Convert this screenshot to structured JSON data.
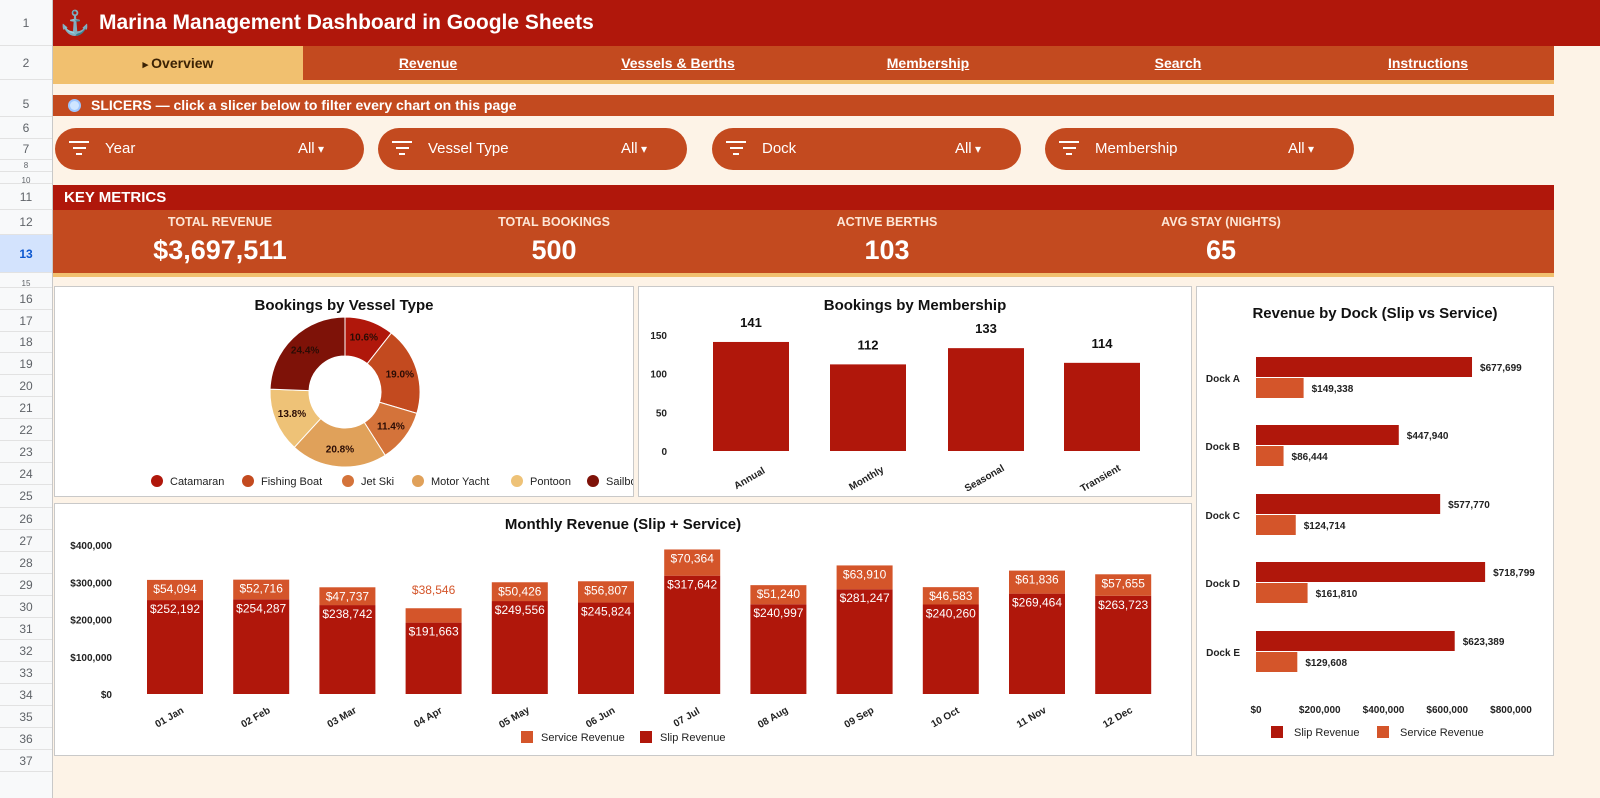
{
  "sheet": {
    "row_numbers": [
      "1",
      "2",
      "5",
      "6",
      "7",
      "8",
      "10",
      "11",
      "12",
      "13",
      "15",
      "16",
      "17",
      "18",
      "19",
      "20",
      "21",
      "22",
      "23",
      "24",
      "25",
      "26",
      "27",
      "28",
      "29",
      "30",
      "31",
      "32",
      "33",
      "34",
      "35",
      "36",
      "37"
    ],
    "selected_row": "13"
  },
  "header": {
    "icon": "anchor-icon",
    "title": "Marina Management Dashboard in Google Sheets"
  },
  "nav": {
    "tabs": [
      {
        "label": "Overview",
        "active": true
      },
      {
        "label": "Revenue"
      },
      {
        "label": "Vessels & Berths"
      },
      {
        "label": "Membership"
      },
      {
        "label": "Search"
      },
      {
        "label": "Instructions"
      }
    ]
  },
  "slicers_section": {
    "label": "SLICERS  —  click a slicer below to filter every chart on this page",
    "icon": "magnifier-icon"
  },
  "slicers": [
    {
      "label": "Year",
      "value": "All"
    },
    {
      "label": "Vessel Type",
      "value": "All"
    },
    {
      "label": "Dock",
      "value": "All"
    },
    {
      "label": "Membership",
      "value": "All"
    }
  ],
  "key_metrics": {
    "heading": "KEY METRICS",
    "items": [
      {
        "label": "TOTAL REVENUE",
        "value": "$3,697,511"
      },
      {
        "label": "TOTAL BOOKINGS",
        "value": "500"
      },
      {
        "label": "ACTIVE BERTHS",
        "value": "103"
      },
      {
        "label": "AVG STAY (NIGHTS)",
        "value": "65"
      }
    ]
  },
  "colors": {
    "dark_red": "#b0170b",
    "orange": "#c34a1f",
    "gold": "#f1c06f",
    "cream": "#fdf3e7"
  },
  "chart_data": [
    {
      "type": "pie",
      "title": "Bookings by Vessel Type",
      "categories": [
        "Catamaran",
        "Fishing Boat",
        "Jet Ski",
        "Motor Yacht",
        "Pontoon",
        "Sailboat"
      ],
      "values": [
        10.6,
        19.0,
        11.4,
        20.8,
        13.8,
        24.4
      ],
      "labels": [
        "10.6%",
        "19.0%",
        "11.4%",
        "20.8%",
        "13.8%",
        "24.4%"
      ],
      "colors": [
        "#b0170b",
        "#c34a1f",
        "#d4733a",
        "#e0a15a",
        "#eec277",
        "#7e1208"
      ],
      "legend": "bottom"
    },
    {
      "type": "bar",
      "title": "Bookings by Membership",
      "categories": [
        "Annual",
        "Monthly",
        "Seasonal",
        "Transient"
      ],
      "values": [
        141,
        112,
        133,
        114
      ],
      "ylim": [
        0,
        150
      ],
      "yticks": [
        "0",
        "50",
        "100",
        "150"
      ],
      "color": "#b0170b"
    },
    {
      "type": "bar",
      "title": "Revenue by Dock  (Slip vs Service)",
      "orientation": "horizontal",
      "categories": [
        "Dock A",
        "Dock B",
        "Dock C",
        "Dock D",
        "Dock E"
      ],
      "series": [
        {
          "name": "Slip Revenue",
          "values": [
            677699,
            447940,
            577770,
            718799,
            623389
          ],
          "labels": [
            "$677,699",
            "$447,940",
            "$577,770",
            "$718,799",
            "$623,389"
          ],
          "color": "#b0170b"
        },
        {
          "name": "Service Revenue",
          "values": [
            149338,
            86444,
            124714,
            161810,
            129608
          ],
          "labels": [
            "$149,338",
            "$86,444",
            "$124,714",
            "$161,810",
            "$129,608"
          ],
          "color": "#d4552a"
        }
      ],
      "xlim": [
        0,
        800000
      ],
      "xticks": [
        "$0",
        "$200,000",
        "$400,000",
        "$600,000",
        "$800,000"
      ],
      "legend": "bottom"
    },
    {
      "type": "bar",
      "stacked": true,
      "title": "Monthly Revenue  (Slip + Service)",
      "categories": [
        "01 Jan",
        "02 Feb",
        "03 Mar",
        "04 Apr",
        "05 May",
        "06 Jun",
        "07 Jul",
        "08 Aug",
        "09 Sep",
        "10 Oct",
        "11 Nov",
        "12 Dec"
      ],
      "series": [
        {
          "name": "Slip Revenue",
          "values": [
            252192,
            254287,
            238742,
            191663,
            249556,
            245824,
            317642,
            240997,
            281247,
            240260,
            269464,
            263723
          ],
          "labels": [
            "$252,192",
            "$254,287",
            "$238,742",
            "$191,663",
            "$249,556",
            "$245,824",
            "$317,642",
            "$240,997",
            "$281,247",
            "$240,260",
            "$269,464",
            "$263,723"
          ],
          "color": "#b0170b"
        },
        {
          "name": "Service Revenue",
          "values": [
            54094,
            52716,
            47737,
            38546,
            50426,
            56807,
            70364,
            51240,
            63910,
            46583,
            61836,
            57655
          ],
          "labels": [
            "$54,094",
            "$52,716",
            "$47,737",
            "$38,546",
            "$50,426",
            "$56,807",
            "$70,364",
            "$51,240",
            "$63,910",
            "$46,583",
            "$61,836",
            "$57,655"
          ],
          "color": "#d4552a"
        }
      ],
      "ylim": [
        0,
        400000
      ],
      "yticks": [
        "$0",
        "$100,000",
        "$200,000",
        "$300,000",
        "$400,000"
      ],
      "legend_order": [
        "Service Revenue",
        "Slip Revenue"
      ],
      "legend": "bottom"
    }
  ]
}
